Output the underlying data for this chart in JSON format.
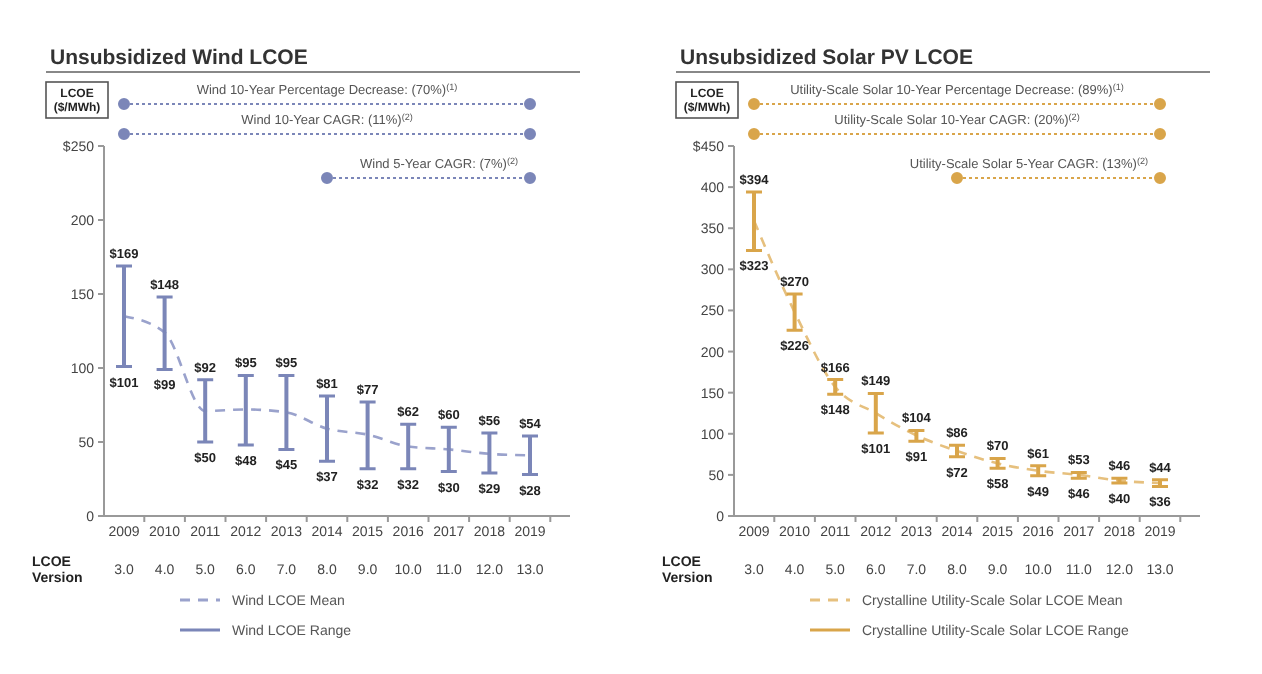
{
  "chart_data": [
    {
      "type": "line",
      "title": "Unsubsidized Wind LCOE",
      "ylabel": "LCOE ($/MWh)",
      "categories": [
        "2009",
        "2010",
        "2011",
        "2012",
        "2013",
        "2014",
        "2015",
        "2016",
        "2017",
        "2018",
        "2019"
      ],
      "ylim": [
        0,
        250
      ],
      "yticks": [
        0,
        50,
        100,
        150,
        200,
        {
          "value": 250,
          "label": "$250"
        }
      ],
      "grid": false,
      "legend": "bottom",
      "series": [
        {
          "name": "Wind LCOE Mean",
          "type": "line",
          "line_style": "dashed",
          "marker": "none",
          "color": "#9aa2cc",
          "values": [
            135,
            124,
            71,
            72,
            70,
            59,
            55,
            47,
            45,
            42,
            41
          ]
        },
        {
          "name": "Wind LCOE Range",
          "type": "bar",
          "color": "#7b86b8",
          "base": [
            101,
            99,
            50,
            48,
            45,
            37,
            32,
            32,
            30,
            29,
            28
          ],
          "values": [
            68,
            49,
            42,
            47,
            50,
            44,
            45,
            30,
            30,
            27,
            26
          ]
        }
      ],
      "annotations": [
        "Wind 10-Year Percentage Decrease: (70%)$^{(1)}$",
        "Wind 10-Year CAGR: (11%)$^{(2)}$",
        "Wind 5-Year CAGR: (7%)$^{(2)}$",
        "LCOE Version",
        "3.0",
        "4.0",
        "5.0",
        "6.0",
        "7.0",
        "8.0",
        "9.0",
        "10.0",
        "11.0",
        "12.0",
        "13.0",
        {
          "text": "$169",
          "x": "2009",
          "y": 169
        },
        {
          "text": "$101",
          "x": "2009",
          "y": 101
        },
        {
          "text": "$148",
          "x": "2010",
          "y": 148
        },
        {
          "text": "$99",
          "x": "2010",
          "y": 99
        },
        {
          "text": "$92",
          "x": "2011",
          "y": 92
        },
        {
          "text": "$50",
          "x": "2011",
          "y": 50
        },
        {
          "text": "$95",
          "x": "2012",
          "y": 95
        },
        {
          "text": "$48",
          "x": "2012",
          "y": 48
        },
        {
          "text": "$95",
          "x": "2013",
          "y": 95
        },
        {
          "text": "$45",
          "x": "2013",
          "y": 45
        },
        {
          "text": "$81",
          "x": "2014",
          "y": 81
        },
        {
          "text": "$37",
          "x": "2014",
          "y": 37
        },
        {
          "text": "$77",
          "x": "2015",
          "y": 77
        },
        {
          "text": "$32",
          "x": "2015",
          "y": 32
        },
        {
          "text": "$62",
          "x": "2016",
          "y": 62
        },
        {
          "text": "$32",
          "x": "2016",
          "y": 32
        },
        {
          "text": "$60",
          "x": "2017",
          "y": 60
        },
        {
          "text": "$30",
          "x": "2017",
          "y": 30
        },
        {
          "text": "$56",
          "x": "2018",
          "y": 56
        },
        {
          "text": "$29",
          "x": "2018",
          "y": 29
        },
        {
          "text": "$54",
          "x": "2019",
          "y": 54
        },
        {
          "text": "$28",
          "x": "2019",
          "y": 28
        }
      ]
    },
    {
      "type": "line",
      "title": "Unsubsidized Solar PV LCOE",
      "ylabel": "LCOE ($/MWh)",
      "categories": [
        "2009",
        "2010",
        "2011",
        "2012",
        "2013",
        "2014",
        "2015",
        "2016",
        "2017",
        "2018",
        "2019"
      ],
      "ylim": [
        0,
        450
      ],
      "yticks": [
        0,
        50,
        100,
        150,
        200,
        250,
        300,
        350,
        400,
        {
          "value": 450,
          "label": "$450"
        }
      ],
      "grid": false,
      "legend": "bottom",
      "series": [
        {
          "name": "Crystalline Utility-Scale Solar LCOE Mean",
          "type": "line",
          "line_style": "dashed",
          "marker": "none",
          "color": "#e6c07e",
          "values": [
            359,
            248,
            157,
            125,
            98,
            79,
            64,
            55,
            50,
            43,
            40
          ]
        },
        {
          "name": "Crystalline Utility-Scale Solar LCOE Range",
          "type": "bar",
          "color": "#d9a54a",
          "base": [
            323,
            226,
            148,
            101,
            91,
            72,
            58,
            49,
            46,
            40,
            36
          ],
          "values": [
            71,
            44,
            18,
            48,
            13,
            14,
            12,
            12,
            7,
            6,
            8
          ]
        }
      ],
      "annotations": [
        "Utility-Scale Solar 10-Year Percentage Decrease: (89%)$^{(1)}$",
        "Utility-Scale Solar 10-Year CAGR: (20%)$^{(2)}$",
        "Utility-Scale Solar 5-Year CAGR: (13%)$^{(2)}$",
        "LCOE Version",
        "3.0",
        "4.0",
        "5.0",
        "6.0",
        "7.0",
        "8.0",
        "9.0",
        "10.0",
        "11.0",
        "12.0",
        "13.0",
        {
          "text": "$394",
          "x": "2009",
          "y": 394
        },
        {
          "text": "$323",
          "x": "2009",
          "y": 323
        },
        {
          "text": "$270",
          "x": "2010",
          "y": 270
        },
        {
          "text": "$226",
          "x": "2010",
          "y": 226
        },
        {
          "text": "$166",
          "x": "2011",
          "y": 166
        },
        {
          "text": "$148",
          "x": "2011",
          "y": 148
        },
        {
          "text": "$149",
          "x": "2012",
          "y": 149
        },
        {
          "text": "$101",
          "x": "2012",
          "y": 101
        },
        {
          "text": "$104",
          "x": "2013",
          "y": 104
        },
        {
          "text": "$91",
          "x": "2013",
          "y": 91
        },
        {
          "text": "$86",
          "x": "2014",
          "y": 86
        },
        {
          "text": "$72",
          "x": "2014",
          "y": 72
        },
        {
          "text": "$70",
          "x": "2015",
          "y": 70
        },
        {
          "text": "$58",
          "x": "2015",
          "y": 58
        },
        {
          "text": "$61",
          "x": "2016",
          "y": 61
        },
        {
          "text": "$49",
          "x": "2016",
          "y": 49
        },
        {
          "text": "$53",
          "x": "2017",
          "y": 53
        },
        {
          "text": "$46",
          "x": "2017",
          "y": 46
        },
        {
          "text": "$46",
          "x": "2018",
          "y": 46
        },
        {
          "text": "$40",
          "x": "2018",
          "y": 40
        },
        {
          "text": "$44",
          "x": "2019",
          "y": 44
        },
        {
          "text": "$36",
          "x": "2019",
          "y": 36
        }
      ]
    }
  ]
}
